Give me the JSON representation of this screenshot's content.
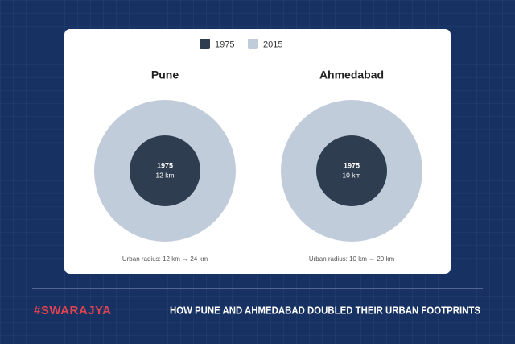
{
  "legend": {
    "items": [
      {
        "name": "1975",
        "color": "#2e3d50"
      },
      {
        "name": "2015",
        "color": "#c1ccdb"
      }
    ]
  },
  "chart_data": [
    {
      "type": "concentric",
      "title": "Pune",
      "series": [
        {
          "name": "1975",
          "color": "#2e3d50",
          "values": [
            12
          ],
          "value_labels": [
            "12 km"
          ]
        },
        {
          "name": "2015",
          "color": "#c1ccdb",
          "values": [
            24
          ]
        }
      ],
      "note": "Urban radius: 12 km → 24 km"
    },
    {
      "type": "concentric",
      "title": "Ahmedabad",
      "series": [
        {
          "name": "1975",
          "color": "#2e3d50",
          "values": [
            10
          ],
          "value_labels": [
            "10 km"
          ]
        },
        {
          "name": "2015",
          "color": "#c1ccdb",
          "values": [
            20
          ]
        }
      ],
      "note": "Urban radius: 10 km → 20 km"
    }
  ],
  "footer": {
    "brand": "#SWARAJYA",
    "headline": "HOW PUNE AND AHMEDABAD DOUBLED THEIR URBAN FOOTPRINTS"
  }
}
